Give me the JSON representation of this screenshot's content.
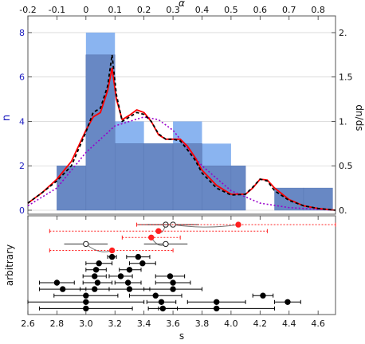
{
  "chart_data": [
    {
      "type": "bar",
      "panel": "top",
      "xlabel_top": "α",
      "ylabel_left": "n",
      "ylabel_right": "dn/ds",
      "xlim": [
        2.6,
        4.72
      ],
      "ylim_left": [
        0,
        8.75
      ],
      "ylim_right": [
        0,
        2.188
      ],
      "top_axis_range": [
        -0.2,
        0.86
      ],
      "top_ticks": [
        "-0.2",
        "-0.1",
        "0",
        "0.1",
        "0.2",
        "0.3",
        "0.4",
        "0.5",
        "0.6",
        "0.7",
        "0.8"
      ],
      "left_ticks": [
        "0",
        "2",
        "4",
        "6",
        "8"
      ],
      "right_ticks": [
        "0.",
        "0.5",
        "1.",
        "1.5",
        "2."
      ],
      "grid": true,
      "bin_edges": [
        2.8,
        3.0,
        3.2,
        3.4,
        3.6,
        3.8,
        4.0,
        4.1,
        4.3,
        4.5
      ],
      "series": [
        {
          "values": [
            2,
            8,
            4,
            3,
            4,
            3,
            2,
            0,
            1,
            1
          ],
          "color": "#8ab4f0"
        },
        {
          "values": [
            2,
            7,
            3,
            3,
            3,
            2,
            2,
            0,
            1,
            1
          ],
          "color": "#6888c4"
        }
      ],
      "curves": {
        "red_solid": {
          "color": "#ff0000",
          "x": [
            2.6,
            2.7,
            2.8,
            2.9,
            3.0,
            3.05,
            3.1,
            3.15,
            3.18,
            3.21,
            3.25,
            3.3,
            3.35,
            3.4,
            3.45,
            3.5,
            3.55,
            3.6,
            3.65,
            3.7,
            3.75,
            3.8,
            3.9,
            4.0,
            4.1,
            4.15,
            4.2,
            4.25,
            4.3,
            4.4,
            4.5,
            4.6,
            4.72
          ],
          "y": [
            0.08,
            0.2,
            0.35,
            0.55,
            0.9,
            1.05,
            1.1,
            1.35,
            1.6,
            1.25,
            1.02,
            1.07,
            1.13,
            1.1,
            1.0,
            0.85,
            0.8,
            0.8,
            0.8,
            0.72,
            0.6,
            0.45,
            0.28,
            0.18,
            0.18,
            0.25,
            0.35,
            0.34,
            0.25,
            0.12,
            0.05,
            0.02,
            0.0
          ]
        },
        "black_dashed": {
          "color": "#000000",
          "x": [
            2.6,
            2.7,
            2.8,
            2.9,
            3.0,
            3.05,
            3.1,
            3.15,
            3.18,
            3.21,
            3.25,
            3.3,
            3.35,
            3.4,
            3.45,
            3.5,
            3.55,
            3.6,
            3.65,
            3.7,
            3.75,
            3.8,
            3.9,
            4.0,
            4.1,
            4.15,
            4.2,
            4.25,
            4.3,
            4.4,
            4.5,
            4.6,
            4.72
          ],
          "y": [
            0.08,
            0.2,
            0.33,
            0.5,
            0.88,
            1.1,
            1.15,
            1.4,
            1.75,
            1.3,
            1.0,
            1.05,
            1.1,
            1.08,
            1.0,
            0.86,
            0.8,
            0.8,
            0.78,
            0.68,
            0.57,
            0.42,
            0.25,
            0.17,
            0.18,
            0.26,
            0.35,
            0.33,
            0.22,
            0.11,
            0.05,
            0.02,
            0.0
          ]
        },
        "purple_dotted": {
          "color": "#9900cc",
          "x": [
            2.6,
            2.8,
            3.0,
            3.2,
            3.4,
            3.5,
            3.6,
            3.7,
            3.8,
            4.0,
            4.2,
            4.4,
            4.6,
            4.72
          ],
          "y": [
            0.05,
            0.25,
            0.65,
            0.95,
            1.05,
            1.02,
            0.9,
            0.7,
            0.5,
            0.22,
            0.08,
            0.03,
            0.01,
            0.0
          ]
        }
      }
    },
    {
      "type": "scatter",
      "panel": "bottom",
      "xlabel": "s",
      "ylabel": "arbitrary",
      "xlim": [
        2.6,
        4.72
      ],
      "xticks": [
        "2.6",
        "2.8",
        "3.0",
        "3.2",
        "3.4",
        "3.6",
        "3.8",
        "4.0",
        "4.2",
        "4.4",
        "4.6"
      ],
      "rows_total": 22,
      "points": [
        {
          "row": 1,
          "x": 3.55,
          "lo": 3.36,
          "hi": 3.74,
          "style": "open"
        },
        {
          "row": 1,
          "x": 3.6,
          "lo": 3.42,
          "hi": 3.78,
          "style": "open"
        },
        {
          "row": 1,
          "x": 4.05,
          "lo": 3.35,
          "hi": 4.72,
          "style": "red"
        },
        {
          "row": 2,
          "x": 3.5,
          "lo": 2.75,
          "hi": 4.25,
          "style": "red"
        },
        {
          "row": 3,
          "x": 3.45,
          "lo": 3.25,
          "hi": 3.65,
          "style": "red"
        },
        {
          "row": 4,
          "x": 3.55,
          "lo": 3.4,
          "hi": 3.7,
          "style": "open"
        },
        {
          "row": 4,
          "x": 3.0,
          "lo": 2.85,
          "hi": 3.15,
          "style": "open"
        },
        {
          "row": 5,
          "x": 3.18,
          "lo": 2.75,
          "hi": 3.6,
          "style": "red"
        },
        {
          "row": 6,
          "x": 3.18,
          "lo": 3.15,
          "hi": 3.21,
          "style": "black"
        },
        {
          "row": 6,
          "x": 3.36,
          "lo": 3.28,
          "hi": 3.44,
          "style": "black"
        },
        {
          "row": 7,
          "x": 3.09,
          "lo": 3.0,
          "hi": 3.18,
          "style": "black"
        },
        {
          "row": 7,
          "x": 3.39,
          "lo": 3.3,
          "hi": 3.48,
          "style": "black"
        },
        {
          "row": 8,
          "x": 3.07,
          "lo": 3.0,
          "hi": 3.14,
          "style": "black"
        },
        {
          "row": 8,
          "x": 3.3,
          "lo": 3.23,
          "hi": 3.38,
          "style": "black"
        },
        {
          "row": 9,
          "x": 3.06,
          "lo": 2.98,
          "hi": 3.14,
          "style": "black"
        },
        {
          "row": 9,
          "x": 3.24,
          "lo": 3.16,
          "hi": 3.32,
          "style": "black"
        },
        {
          "row": 9,
          "x": 3.58,
          "lo": 3.48,
          "hi": 3.68,
          "style": "black"
        },
        {
          "row": 10,
          "x": 2.8,
          "lo": 2.68,
          "hi": 2.92,
          "style": "black"
        },
        {
          "row": 10,
          "x": 3.08,
          "lo": 2.98,
          "hi": 3.18,
          "style": "black"
        },
        {
          "row": 10,
          "x": 3.29,
          "lo": 3.2,
          "hi": 3.38,
          "style": "black"
        },
        {
          "row": 10,
          "x": 3.6,
          "lo": 3.48,
          "hi": 3.72,
          "style": "black"
        },
        {
          "row": 11,
          "x": 2.84,
          "lo": 2.68,
          "hi": 3.0,
          "style": "black"
        },
        {
          "row": 11,
          "x": 3.06,
          "lo": 2.96,
          "hi": 3.16,
          "style": "black"
        },
        {
          "row": 11,
          "x": 3.3,
          "lo": 3.16,
          "hi": 3.44,
          "style": "black"
        },
        {
          "row": 11,
          "x": 3.6,
          "lo": 3.4,
          "hi": 3.8,
          "style": "black"
        },
        {
          "row": 12,
          "x": 4.22,
          "lo": 4.15,
          "hi": 4.29,
          "style": "black"
        },
        {
          "row": 12,
          "x": 3.0,
          "lo": 2.78,
          "hi": 3.22,
          "style": "black"
        },
        {
          "row": 12,
          "x": 3.48,
          "lo": 3.3,
          "hi": 3.66,
          "style": "black"
        },
        {
          "row": 13,
          "x": 3.0,
          "lo": 2.6,
          "hi": 3.4,
          "style": "black"
        },
        {
          "row": 13,
          "x": 3.52,
          "lo": 3.42,
          "hi": 3.62,
          "style": "black"
        },
        {
          "row": 13,
          "x": 3.9,
          "lo": 3.7,
          "hi": 4.1,
          "style": "black"
        },
        {
          "row": 13,
          "x": 4.39,
          "lo": 4.3,
          "hi": 4.48,
          "style": "black"
        },
        {
          "row": 14,
          "x": 3.0,
          "lo": 2.68,
          "hi": 3.32,
          "style": "black"
        },
        {
          "row": 14,
          "x": 3.53,
          "lo": 3.43,
          "hi": 3.63,
          "style": "black"
        },
        {
          "row": 14,
          "x": 3.9,
          "lo": 3.5,
          "hi": 4.3,
          "style": "black"
        }
      ],
      "arrows": [
        {
          "from_row": 1,
          "from_x": 3.6,
          "to_row": 1,
          "to_x": 4.05
        },
        {
          "from_row": 4,
          "from_x": 3.0,
          "to_row": 5,
          "to_x": 3.18
        },
        {
          "from_row": 4,
          "from_x": 3.55,
          "to_row": 3,
          "to_x": 3.45
        },
        {
          "from_row": 1,
          "from_x": 3.55,
          "to_row": 2,
          "to_x": 3.5
        }
      ]
    }
  ]
}
